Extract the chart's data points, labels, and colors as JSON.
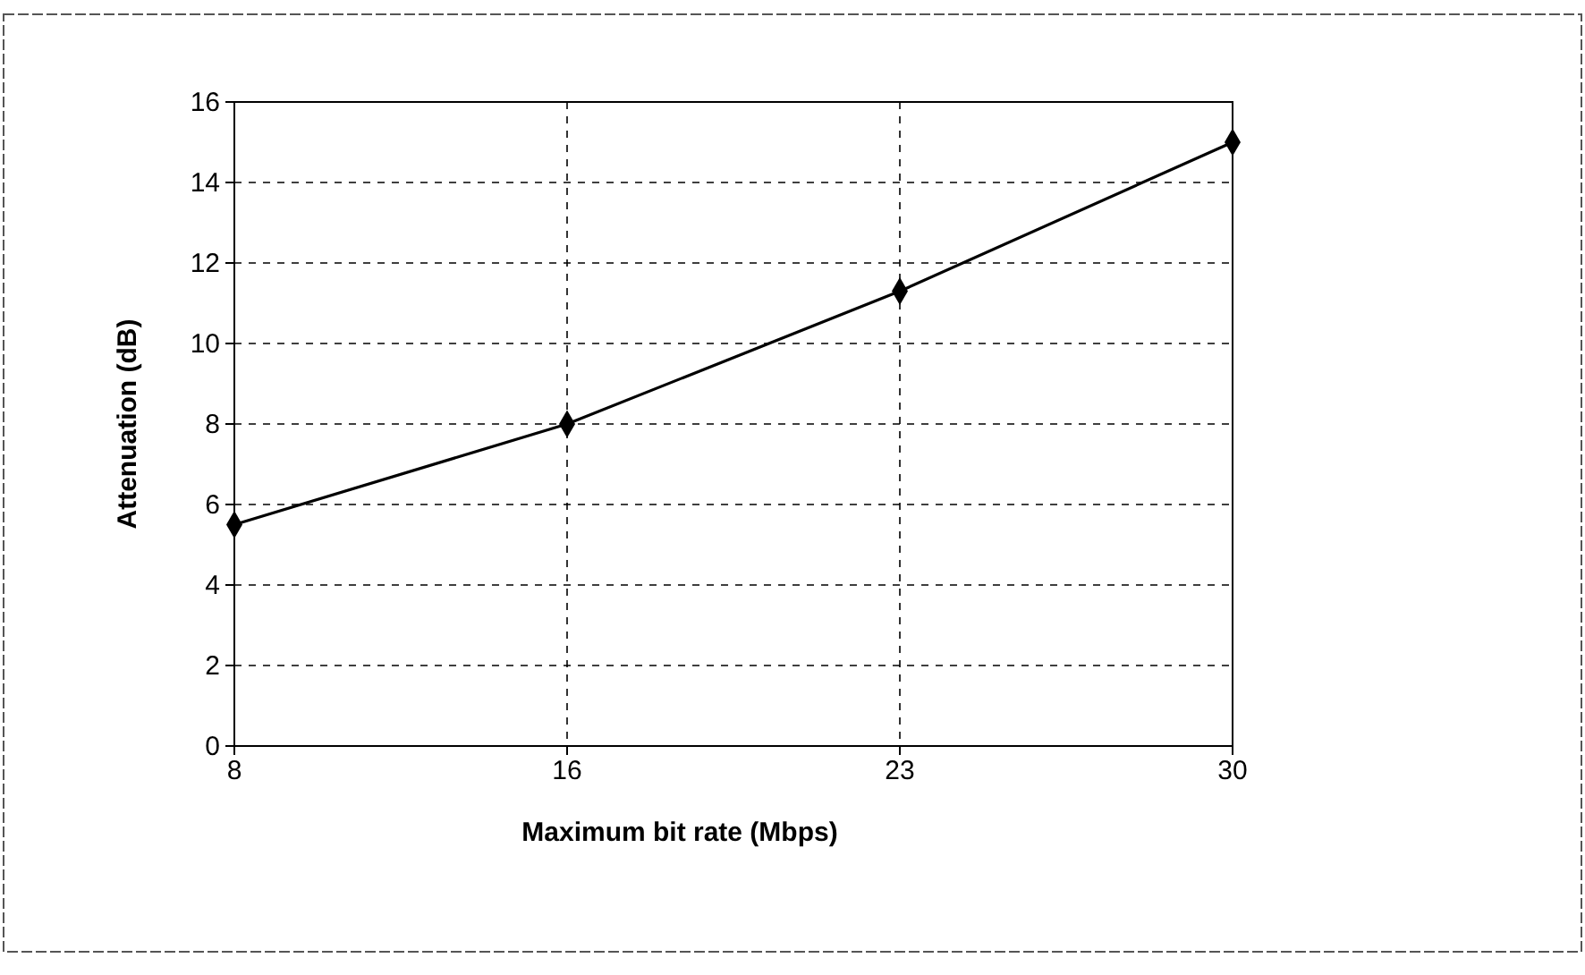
{
  "chart_data": {
    "type": "line",
    "xlabel": "Maximum bit rate (Mbps)",
    "ylabel": "Attenuation (dB)",
    "categories": [
      "8",
      "16",
      "23",
      "30"
    ],
    "series": [
      {
        "color": "#000000",
        "values": [
          5.5,
          8.0,
          11.3,
          15.0
        ]
      }
    ],
    "ylim": [
      0,
      16
    ],
    "yticks": [
      0,
      2,
      4,
      6,
      8,
      10,
      12,
      14,
      16
    ],
    "grid": true,
    "marker": "diamond",
    "line_style": "solid"
  }
}
